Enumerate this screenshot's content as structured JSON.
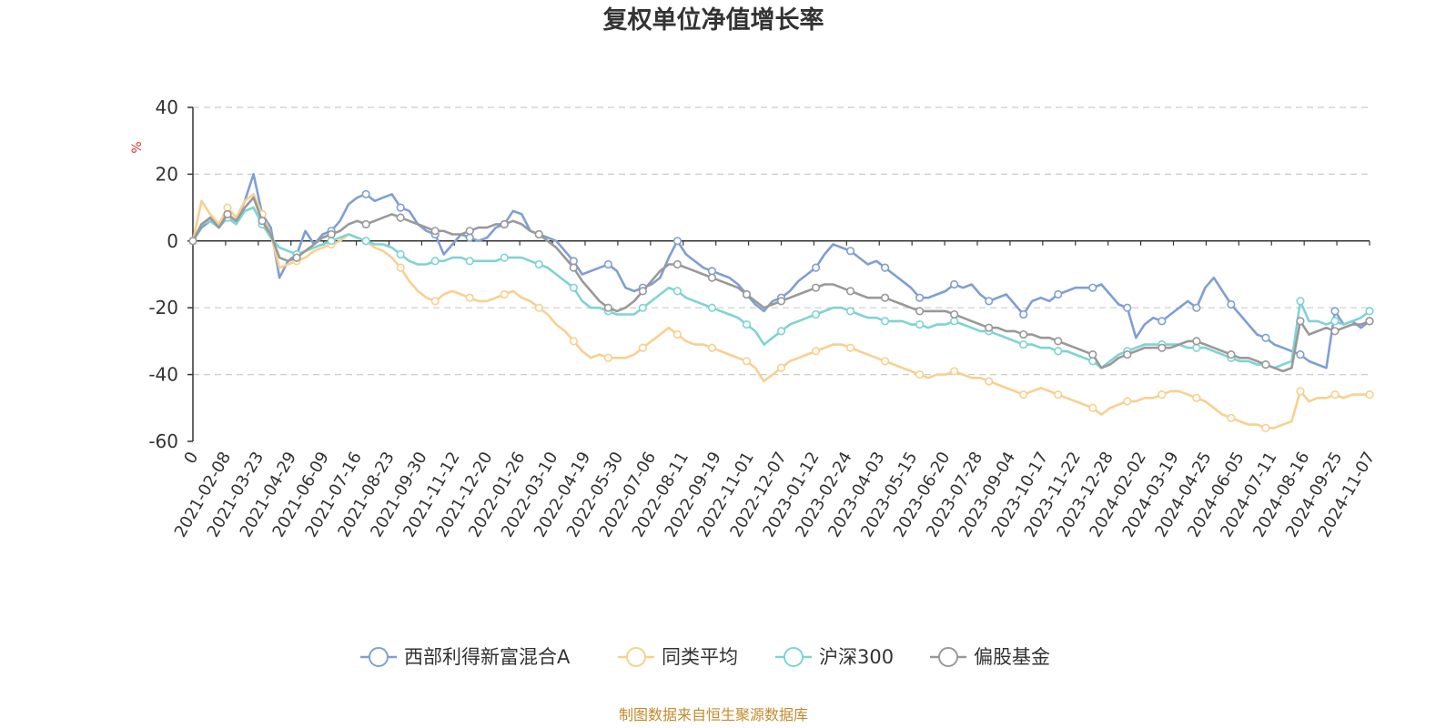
{
  "chart_data": {
    "type": "line",
    "title": "复权单位净值增长率",
    "ylabel": "%",
    "ylim": [
      -60,
      40
    ],
    "yticks": [
      -60,
      -40,
      -20,
      0,
      20,
      40
    ],
    "grid": true,
    "legend_position": "bottom",
    "source": "制图数据来自恒生聚源数据库",
    "x_ticks": [
      "0",
      "2021-02-08",
      "2021-03-23",
      "2021-04-29",
      "2021-06-09",
      "2021-07-16",
      "2021-08-23",
      "2021-09-30",
      "2021-11-12",
      "2021-12-20",
      "2022-01-26",
      "2022-03-10",
      "2022-04-19",
      "2022-05-30",
      "2022-07-06",
      "2022-08-11",
      "2022-09-19",
      "2022-11-01",
      "2022-12-07",
      "2023-01-12",
      "2023-02-24",
      "2023-04-03",
      "2023-05-15",
      "2023-06-20",
      "2023-07-28",
      "2023-09-04",
      "2023-10-17",
      "2023-11-22",
      "2023-12-28",
      "2024-02-02",
      "2024-03-19",
      "2024-04-25",
      "2024-06-05",
      "2024-07-11",
      "2024-08-16",
      "2024-09-25",
      "2024-11-07"
    ],
    "series": [
      {
        "name": "西部利得新富混合A",
        "color": "#7f9fd3",
        "values": [
          0,
          4,
          6,
          5,
          8,
          6,
          12,
          20,
          8,
          4,
          -11,
          -6,
          -4,
          3,
          -1,
          2,
          3,
          6,
          11,
          13,
          14,
          12,
          13,
          14,
          10,
          9,
          5,
          3,
          2,
          -4,
          -1,
          2,
          1,
          0,
          1,
          4,
          5,
          9,
          8,
          3,
          2,
          1,
          0,
          -3,
          -6,
          -10,
          -9,
          -8,
          -7,
          -9,
          -14,
          -15,
          -14,
          -13,
          -11,
          -5,
          0,
          -4,
          -6,
          -8,
          -9,
          -10,
          -11,
          -13,
          -16,
          -19,
          -21,
          -18,
          -17,
          -15,
          -12,
          -10,
          -8,
          -4,
          -1,
          -2,
          -3,
          -5,
          -7,
          -6,
          -8,
          -10,
          -12,
          -14,
          -17,
          -17,
          -16,
          -15,
          -13,
          -14,
          -13,
          -16,
          -18,
          -17,
          -16,
          -19,
          -22,
          -18,
          -17,
          -18,
          -16,
          -15,
          -14,
          -14,
          -14,
          -13,
          -16,
          -19,
          -20,
          -29,
          -25,
          -23,
          -24,
          -22,
          -20,
          -18,
          -20,
          -14,
          -11,
          -15,
          -19,
          -22,
          -25,
          -28,
          -29,
          -31,
          -32,
          -33,
          -34,
          -36,
          -37,
          -38,
          -21,
          -25,
          -24,
          -26,
          -24
        ]
      },
      {
        "name": "同类平均",
        "color": "#f8d08f",
        "values": [
          0,
          12,
          8,
          5,
          10,
          7,
          12,
          14,
          8,
          2,
          -8,
          -7,
          -6,
          -5,
          -3,
          -2,
          -1,
          0,
          2,
          1,
          0,
          -2,
          -3,
          -5,
          -8,
          -12,
          -15,
          -17,
          -18,
          -16,
          -15,
          -16,
          -17,
          -18,
          -18,
          -17,
          -16,
          -15,
          -17,
          -18,
          -20,
          -22,
          -25,
          -27,
          -30,
          -33,
          -35,
          -34,
          -35,
          -35,
          -35,
          -34,
          -32,
          -30,
          -28,
          -26,
          -28,
          -30,
          -31,
          -31,
          -32,
          -33,
          -34,
          -35,
          -36,
          -38,
          -42,
          -40,
          -38,
          -36,
          -35,
          -34,
          -33,
          -32,
          -31,
          -31,
          -32,
          -33,
          -34,
          -35,
          -36,
          -37,
          -38,
          -39,
          -40,
          -41,
          -40,
          -40,
          -39,
          -40,
          -41,
          -41,
          -42,
          -43,
          -44,
          -45,
          -46,
          -45,
          -44,
          -45,
          -46,
          -47,
          -48,
          -49,
          -50,
          -52,
          -50,
          -49,
          -48,
          -48,
          -47,
          -47,
          -46,
          -45,
          -45,
          -46,
          -47,
          -48,
          -50,
          -52,
          -53,
          -54,
          -55,
          -55,
          -56,
          -56,
          -55,
          -54,
          -45,
          -48,
          -47,
          -47,
          -46,
          -47,
          -46,
          -46,
          -46
        ]
      },
      {
        "name": "沪深300",
        "color": "#7fd3d3",
        "values": [
          0,
          5,
          6,
          4,
          7,
          5,
          9,
          10,
          5,
          1,
          -2,
          -3,
          -4,
          -3,
          -2,
          -1,
          0,
          1,
          2,
          1,
          0,
          -1,
          -1,
          -2,
          -4,
          -6,
          -7,
          -7,
          -6,
          -6,
          -5,
          -5,
          -6,
          -6,
          -6,
          -6,
          -5,
          -5,
          -5,
          -6,
          -7,
          -8,
          -10,
          -12,
          -14,
          -18,
          -20,
          -20,
          -21,
          -22,
          -22,
          -22,
          -20,
          -18,
          -16,
          -14,
          -15,
          -17,
          -18,
          -19,
          -20,
          -21,
          -22,
          -23,
          -25,
          -27,
          -31,
          -29,
          -27,
          -25,
          -24,
          -23,
          -22,
          -21,
          -20,
          -20,
          -21,
          -22,
          -23,
          -23,
          -24,
          -24,
          -24,
          -25,
          -25,
          -26,
          -25,
          -25,
          -24,
          -25,
          -26,
          -27,
          -27,
          -28,
          -29,
          -30,
          -31,
          -31,
          -32,
          -32,
          -33,
          -33,
          -34,
          -35,
          -36,
          -38,
          -36,
          -34,
          -33,
          -32,
          -31,
          -31,
          -31,
          -31,
          -31,
          -32,
          -32,
          -32,
          -33,
          -34,
          -35,
          -36,
          -36,
          -37,
          -37,
          -38,
          -37,
          -36,
          -18,
          -24,
          -24,
          -25,
          -24,
          -25,
          -24,
          -23,
          -21
        ]
      },
      {
        "name": "偏股基金",
        "color": "#999999",
        "values": [
          0,
          5,
          7,
          4,
          8,
          6,
          10,
          13,
          6,
          2,
          -5,
          -6,
          -5,
          -3,
          -1,
          1,
          2,
          3,
          5,
          6,
          5,
          6,
          7,
          8,
          7,
          6,
          5,
          4,
          3,
          3,
          2,
          2,
          3,
          4,
          4,
          5,
          5,
          6,
          5,
          3,
          2,
          0,
          -2,
          -5,
          -8,
          -12,
          -15,
          -18,
          -20,
          -21,
          -20,
          -18,
          -15,
          -12,
          -9,
          -7,
          -7,
          -8,
          -9,
          -10,
          -11,
          -12,
          -13,
          -14,
          -16,
          -18,
          -20,
          -19,
          -18,
          -17,
          -16,
          -15,
          -14,
          -13,
          -13,
          -14,
          -15,
          -16,
          -17,
          -17,
          -17,
          -18,
          -19,
          -20,
          -21,
          -21,
          -21,
          -21,
          -22,
          -23,
          -24,
          -25,
          -26,
          -26,
          -27,
          -27,
          -28,
          -28,
          -29,
          -29,
          -30,
          -31,
          -32,
          -33,
          -34,
          -38,
          -37,
          -35,
          -34,
          -33,
          -32,
          -32,
          -32,
          -32,
          -31,
          -30,
          -30,
          -31,
          -32,
          -33,
          -34,
          -35,
          -35,
          -36,
          -37,
          -38,
          -39,
          -38,
          -24,
          -28,
          -27,
          -26,
          -27,
          -26,
          -25,
          -25,
          -24
        ]
      }
    ]
  }
}
